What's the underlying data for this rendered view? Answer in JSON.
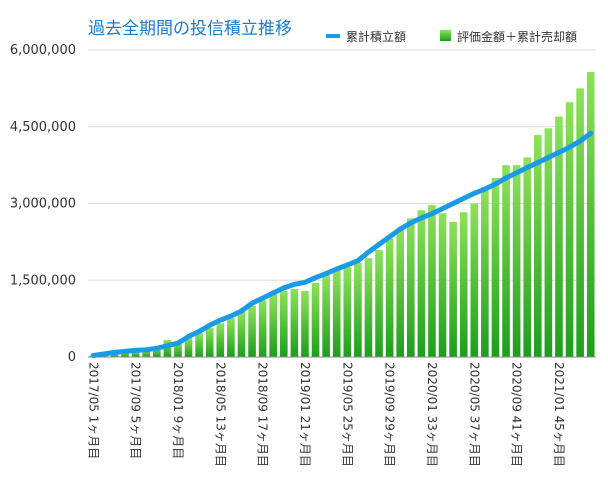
{
  "chart_data": {
    "type": "bar_line",
    "title": "過去全期間の投信積立推移",
    "categories": [
      "2017/05 1ヶ月目",
      null,
      null,
      null,
      "2017/09 5ヶ月目",
      null,
      null,
      null,
      "2018/01 9ヶ月目",
      null,
      null,
      null,
      "2018/05 13ヶ月目",
      null,
      null,
      null,
      "2018/09 17ヶ月目",
      null,
      null,
      null,
      "2019/01 21ヶ月目",
      null,
      null,
      null,
      "2019/05 25ヶ月目",
      null,
      null,
      null,
      "2019/09 29ヶ月目",
      null,
      null,
      null,
      "2020/01 33ヶ月目",
      null,
      null,
      null,
      "2020/05 37ヶ月目",
      null,
      null,
      null,
      "2020/09 41ヶ月目",
      null,
      null,
      null,
      "2021/01 45ヶ月目",
      null,
      null,
      null
    ],
    "series": [
      {
        "name": "累計積立額",
        "kind": "line",
        "color": "#1a9be8",
        "values": [
          30000,
          60000,
          90000,
          110000,
          130000,
          140000,
          170000,
          220000,
          270000,
          400000,
          500000,
          620000,
          720000,
          800000,
          900000,
          1050000,
          1150000,
          1250000,
          1350000,
          1420000,
          1460000,
          1550000,
          1630000,
          1720000,
          1800000,
          1880000,
          2050000,
          2200000,
          2350000,
          2500000,
          2620000,
          2720000,
          2800000,
          2900000,
          3000000,
          3100000,
          3200000,
          3280000,
          3380000,
          3500000,
          3600000,
          3700000,
          3800000,
          3900000,
          4000000,
          4100000,
          4220000,
          4370000
        ]
      },
      {
        "name": "評価金額＋累計売却額",
        "kind": "bar",
        "color": "#4cc93a",
        "gradient": [
          "#8ee25a",
          "#1c9e1c"
        ],
        "values": [
          30000,
          60000,
          80000,
          100000,
          130000,
          140000,
          200000,
          330000,
          310000,
          370000,
          470000,
          570000,
          660000,
          760000,
          880000,
          1000000,
          1110000,
          1230000,
          1290000,
          1330000,
          1290000,
          1450000,
          1600000,
          1700000,
          1760000,
          1840000,
          1930000,
          2090000,
          2320000,
          2480000,
          2710000,
          2870000,
          2970000,
          2810000,
          2640000,
          2830000,
          3000000,
          3320000,
          3500000,
          3750000,
          3750000,
          3900000,
          4340000,
          4470000,
          4700000,
          4980000,
          5250000,
          5570000
        ]
      }
    ],
    "ylim": [
      0,
      6000000
    ],
    "yticks": [
      0,
      {
        "value": 1500000,
        "label": "1,500,000"
      },
      {
        "value": 3000000,
        "label": "3,000,000"
      },
      {
        "value": 4500000,
        "label": "4,500,000"
      },
      {
        "value": 6000000,
        "label": "6,000,000"
      }
    ],
    "grid": true
  }
}
